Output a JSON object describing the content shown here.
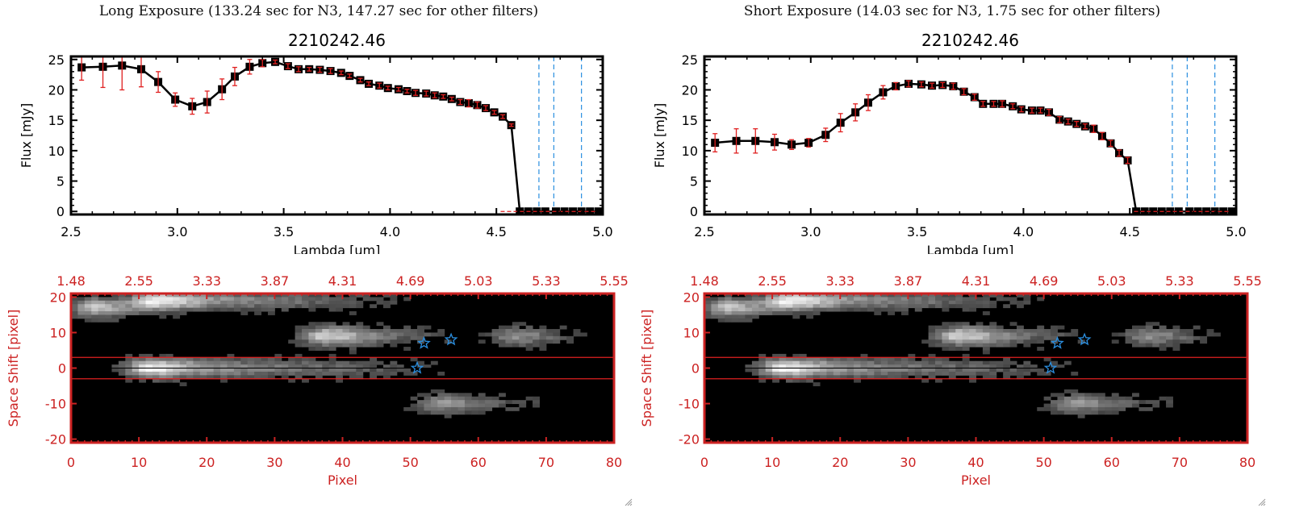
{
  "panels": [
    {
      "exposure_title": "Long Exposure (133.24 sec for N3, 147.27 sec for other filters)",
      "spectrum": {
        "title": "2210242.46",
        "xlabel": "Lambda [um]",
        "ylabel": "Flux [mJy]"
      },
      "image": {
        "xlabel": "Pixel",
        "ylabel": "Space Shift [pixel]"
      }
    },
    {
      "exposure_title": "Short Exposure (14.03 sec for N3, 1.75 sec for other filters)",
      "spectrum": {
        "title": "2210242.46",
        "xlabel": "Lambda [um]",
        "ylabel": "Flux [mJy]"
      },
      "image": {
        "xlabel": "Pixel",
        "ylabel": "Space Shift [pixel]"
      }
    }
  ],
  "colors": {
    "line": "#000000",
    "errorbar": "#e02020",
    "marker_outline": "#000000",
    "filter_lines": "#2b8fe0",
    "image_frame": "#cc2222",
    "aperture_lines": "#e02020",
    "star_markers": "#2b8fe0"
  },
  "chart_data": [
    {
      "type": "line",
      "title": "2210242.46",
      "xlabel": "Lambda [um]",
      "ylabel": "Flux [mJy]",
      "xlim": [
        2.5,
        5.0
      ],
      "ylim": [
        -0.5,
        25.5
      ],
      "xticks": [
        "2.5",
        "3.0",
        "3.5",
        "4.0",
        "4.5",
        "5.0"
      ],
      "xtick_values": [
        2.5,
        3.0,
        3.5,
        4.0,
        4.5,
        5.0
      ],
      "yticks": [
        "0",
        "5",
        "10",
        "15",
        "20",
        "25"
      ],
      "ytick_values": [
        0,
        5,
        10,
        15,
        20,
        25
      ],
      "vlines": [
        4.7,
        4.77,
        4.9
      ],
      "hline_zero_dashed": true,
      "x": [
        2.55,
        2.65,
        2.74,
        2.83,
        2.91,
        2.99,
        3.07,
        3.14,
        3.21,
        3.27,
        3.34,
        3.4,
        3.46,
        3.52,
        3.57,
        3.62,
        3.67,
        3.72,
        3.77,
        3.81,
        3.86,
        3.9,
        3.95,
        3.99,
        4.04,
        4.08,
        4.12,
        4.17,
        4.21,
        4.25,
        4.29,
        4.33,
        4.37,
        4.41,
        4.45,
        4.49,
        4.53,
        4.57,
        4.61,
        4.65,
        4.69,
        4.73,
        4.78,
        4.82,
        4.86,
        4.9,
        4.94,
        4.98
      ],
      "y": [
        23.7,
        23.8,
        24.0,
        23.4,
        21.3,
        18.4,
        17.3,
        18.0,
        20.1,
        22.2,
        23.8,
        24.4,
        24.6,
        23.9,
        23.4,
        23.4,
        23.3,
        23.1,
        22.8,
        22.3,
        21.6,
        21.0,
        20.7,
        20.3,
        20.1,
        19.8,
        19.5,
        19.4,
        19.1,
        18.9,
        18.5,
        18.0,
        17.8,
        17.5,
        17.0,
        16.3,
        15.6,
        14.2,
        0,
        0,
        0,
        0,
        0,
        0,
        0,
        0,
        0,
        0
      ],
      "yerr": [
        2.1,
        3.4,
        4.0,
        2.9,
        1.7,
        1.1,
        1.3,
        1.8,
        1.7,
        1.5,
        1.2,
        0.6,
        0.3,
        0.4,
        0.4,
        0.3,
        0.4,
        0.4,
        0.3,
        0.3,
        0.3,
        0.3,
        0.4,
        0.3,
        0.3,
        0.3,
        0.4,
        0.4,
        0.4,
        0.3,
        0.3,
        0.4,
        0.6,
        0.5,
        0.4,
        0.3,
        0.3,
        0.2,
        0,
        0,
        0,
        0,
        0,
        0,
        0,
        0,
        0,
        0
      ]
    },
    {
      "type": "line",
      "title": "2210242.46",
      "xlabel": "Lambda [um]",
      "ylabel": "Flux [mJy]",
      "xlim": [
        2.5,
        5.0
      ],
      "ylim": [
        -0.5,
        25.5
      ],
      "xticks": [
        "2.5",
        "3.0",
        "3.5",
        "4.0",
        "4.5",
        "5.0"
      ],
      "xtick_values": [
        2.5,
        3.0,
        3.5,
        4.0,
        4.5,
        5.0
      ],
      "yticks": [
        "0",
        "5",
        "10",
        "15",
        "20",
        "25"
      ],
      "ytick_values": [
        0,
        5,
        10,
        15,
        20,
        25
      ],
      "vlines": [
        4.7,
        4.77,
        4.9
      ],
      "hline_zero_dashed": true,
      "x": [
        2.55,
        2.65,
        2.74,
        2.83,
        2.91,
        2.99,
        3.07,
        3.14,
        3.21,
        3.27,
        3.34,
        3.4,
        3.46,
        3.52,
        3.57,
        3.62,
        3.67,
        3.72,
        3.77,
        3.81,
        3.86,
        3.9,
        3.95,
        3.99,
        4.04,
        4.08,
        4.12,
        4.17,
        4.21,
        4.25,
        4.29,
        4.33,
        4.37,
        4.41,
        4.45,
        4.49,
        4.53,
        4.57,
        4.61,
        4.65,
        4.69,
        4.73,
        4.78,
        4.82,
        4.86,
        4.9,
        4.94,
        4.98
      ],
      "y": [
        11.3,
        11.6,
        11.6,
        11.4,
        11.0,
        11.3,
        12.6,
        14.6,
        16.3,
        17.9,
        19.6,
        20.6,
        21.0,
        20.9,
        20.7,
        20.8,
        20.6,
        19.7,
        18.8,
        17.7,
        17.7,
        17.7,
        17.3,
        16.8,
        16.6,
        16.6,
        16.3,
        15.1,
        14.8,
        14.4,
        14.0,
        13.6,
        12.4,
        11.2,
        9.6,
        8.4,
        0,
        0,
        0,
        0,
        0,
        0,
        0,
        0,
        0,
        0,
        0,
        0
      ],
      "yerr": [
        1.5,
        2.0,
        2.0,
        1.3,
        0.8,
        0.7,
        1.1,
        1.5,
        1.4,
        1.3,
        1.1,
        0.6,
        0.5,
        0.4,
        0.4,
        0.4,
        0.5,
        0.5,
        0.5,
        0.4,
        0.4,
        0.5,
        0.4,
        0.4,
        0.4,
        0.4,
        0.5,
        0.5,
        0.4,
        0.4,
        0.4,
        0.6,
        0.6,
        0.5,
        0.5,
        0.5,
        0,
        0,
        0,
        0,
        0,
        0,
        0,
        0,
        0,
        0,
        0,
        0
      ]
    },
    {
      "type": "heatmap",
      "xlabel": "Pixel",
      "ylabel": "Space Shift [pixel]",
      "xlim": [
        0,
        80
      ],
      "ylim": [
        -21,
        21
      ],
      "xticks": [
        "0",
        "10",
        "20",
        "30",
        "40",
        "50",
        "60",
        "70",
        "80"
      ],
      "xtick_values": [
        0,
        10,
        20,
        30,
        40,
        50,
        60,
        70,
        80
      ],
      "yticks": [
        "-20",
        "-10",
        "0",
        "10",
        "20"
      ],
      "ytick_values": [
        -20,
        -10,
        0,
        10,
        20
      ],
      "top_axis_label_values": [
        "1.48",
        "2.55",
        "3.33",
        "3.87",
        "4.31",
        "4.69",
        "5.03",
        "5.33",
        "5.55"
      ],
      "aperture_lines": [
        3,
        -3
      ],
      "center_line": 0,
      "stars": [
        [
          52,
          7
        ],
        [
          56,
          8
        ],
        [
          51,
          0
        ]
      ],
      "sources": [
        {
          "x": 12,
          "y": 0,
          "peak": 1.0,
          "tail_to": 62
        },
        {
          "x": 13,
          "y": 19,
          "peak": 1.0,
          "tail_to": 55
        },
        {
          "x": 4,
          "y": 17,
          "peak": 0.75,
          "tail_to": 12
        },
        {
          "x": 38,
          "y": 9,
          "peak": 0.85,
          "tail_to": 60
        },
        {
          "x": 66,
          "y": 9,
          "peak": 0.5,
          "tail_to": 78
        },
        {
          "x": 55,
          "y": -10,
          "peak": 0.55,
          "tail_to": 74
        }
      ]
    },
    {
      "type": "heatmap",
      "xlabel": "Pixel",
      "ylabel": "Space Shift [pixel]",
      "xlim": [
        0,
        80
      ],
      "ylim": [
        -21,
        21
      ],
      "xticks": [
        "0",
        "10",
        "20",
        "30",
        "40",
        "50",
        "60",
        "70",
        "80"
      ],
      "xtick_values": [
        0,
        10,
        20,
        30,
        40,
        50,
        60,
        70,
        80
      ],
      "yticks": [
        "-20",
        "-10",
        "0",
        "10",
        "20"
      ],
      "ytick_values": [
        -20,
        -10,
        0,
        10,
        20
      ],
      "top_axis_label_values": [
        "1.48",
        "2.55",
        "3.33",
        "3.87",
        "4.31",
        "4.69",
        "5.03",
        "5.33",
        "5.55"
      ],
      "aperture_lines": [
        3,
        -3
      ],
      "center_line": 0,
      "stars": [
        [
          52,
          7
        ],
        [
          56,
          8
        ],
        [
          51,
          0
        ]
      ],
      "sources": [
        {
          "x": 12,
          "y": 0,
          "peak": 1.0,
          "tail_to": 62
        },
        {
          "x": 13,
          "y": 19,
          "peak": 1.0,
          "tail_to": 55
        },
        {
          "x": 4,
          "y": 17,
          "peak": 0.75,
          "tail_to": 12
        },
        {
          "x": 38,
          "y": 9,
          "peak": 0.85,
          "tail_to": 60
        },
        {
          "x": 66,
          "y": 9,
          "peak": 0.5,
          "tail_to": 78
        },
        {
          "x": 55,
          "y": -10,
          "peak": 0.55,
          "tail_to": 74
        }
      ]
    }
  ]
}
